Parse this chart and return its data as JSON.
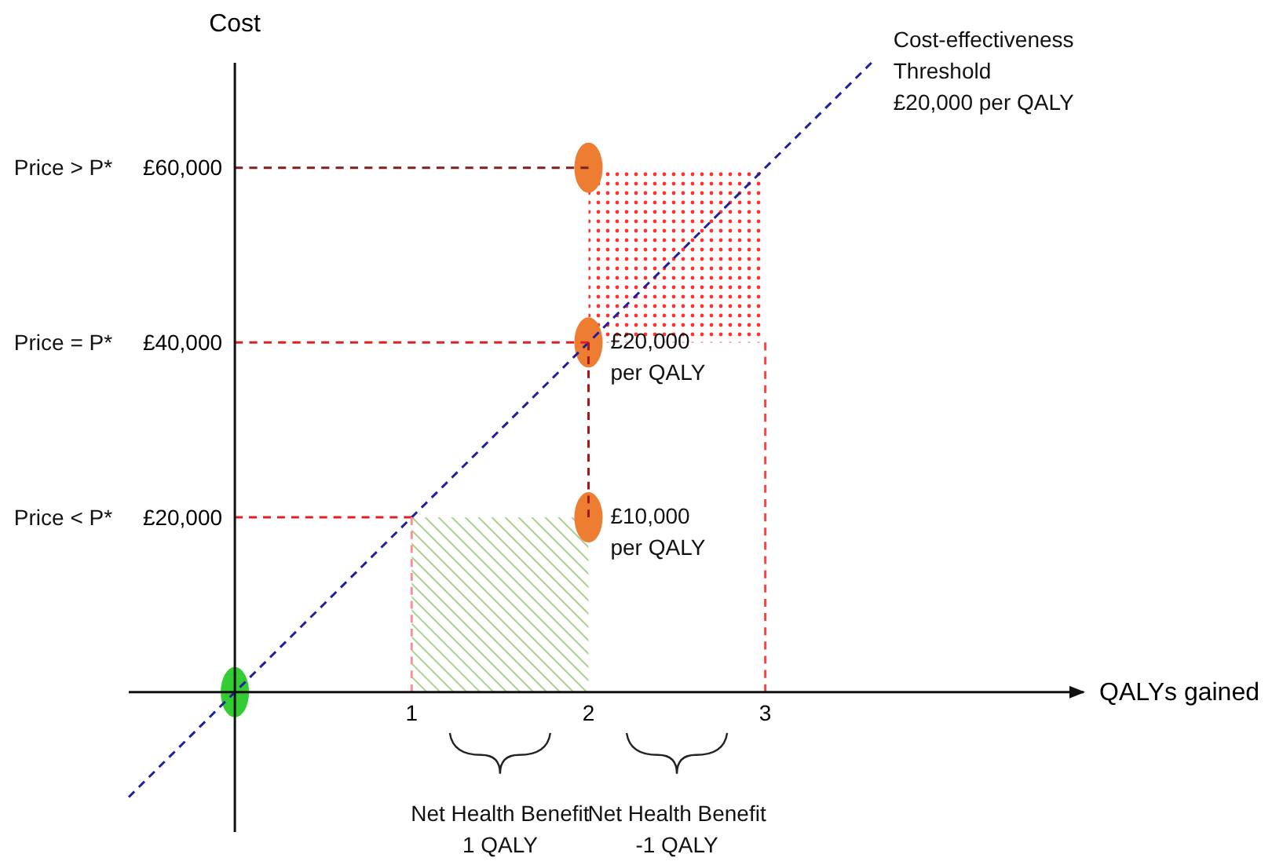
{
  "chart_data": {
    "type": "scatter",
    "xlabel": "QALYs gained",
    "ylabel": "Cost",
    "xlim": [
      -0.6,
      4.8
    ],
    "ylim": [
      -16000,
      72000
    ],
    "xticks": [
      1,
      2,
      3
    ],
    "yticks": [
      {
        "value": 20000,
        "label": "£20,000"
      },
      {
        "value": 40000,
        "label": "£40,000"
      },
      {
        "value": 60000,
        "label": "£60,000"
      }
    ],
    "grid": false,
    "line_style": "dashed",
    "series": [
      {
        "type": "bar",
        "color": "#a9d18e",
        "x": [
          1.5
        ],
        "base": [
          0
        ],
        "values": [
          20000
        ]
      },
      {
        "type": "bar",
        "color": "#ff3333",
        "x": [
          2.5
        ],
        "base": [
          40000
        ],
        "values": [
          20000
        ]
      },
      {
        "type": "line",
        "color": "#1f1fa0",
        "x": [
          -0.6,
          3.6
        ],
        "values": [
          -12000,
          72000
        ]
      },
      {
        "type": "line",
        "color": "#7f1f1f",
        "x": [
          0,
          2
        ],
        "values": [
          60000,
          60000
        ]
      },
      {
        "type": "line",
        "color": "#e02020",
        "x": [
          0,
          2
        ],
        "values": [
          40000,
          40000
        ]
      },
      {
        "type": "line",
        "color": "#e02020",
        "x": [
          0,
          1
        ],
        "values": [
          20000,
          20000
        ]
      },
      {
        "type": "line",
        "color": "#a01818",
        "x": [
          2,
          2
        ],
        "values": [
          40000,
          20000
        ]
      },
      {
        "type": "line",
        "color": "#ff4040",
        "x": [
          3,
          3
        ],
        "values": [
          0,
          40000
        ]
      },
      {
        "type": "line",
        "color": "#ff9090",
        "x": [
          1,
          1
        ],
        "values": [
          0,
          20000
        ]
      },
      {
        "color": "#ed7d31",
        "x": [
          2,
          2,
          2
        ],
        "values": [
          60000,
          40000,
          20000
        ]
      },
      {
        "color": "#33cc33",
        "x": [
          0
        ],
        "values": [
          0
        ]
      }
    ],
    "annotations": [
      "Net Health Benefit\n1 QALY",
      "Net Health Benefit\n-1 QALY",
      "Price > P*",
      "Price = P*",
      "Price < P*",
      "Cost-effectiveness\nThreshold\n£20,000 per QALY",
      "£20,000\nper QALY",
      "£10,000\nper QALY"
    ]
  }
}
